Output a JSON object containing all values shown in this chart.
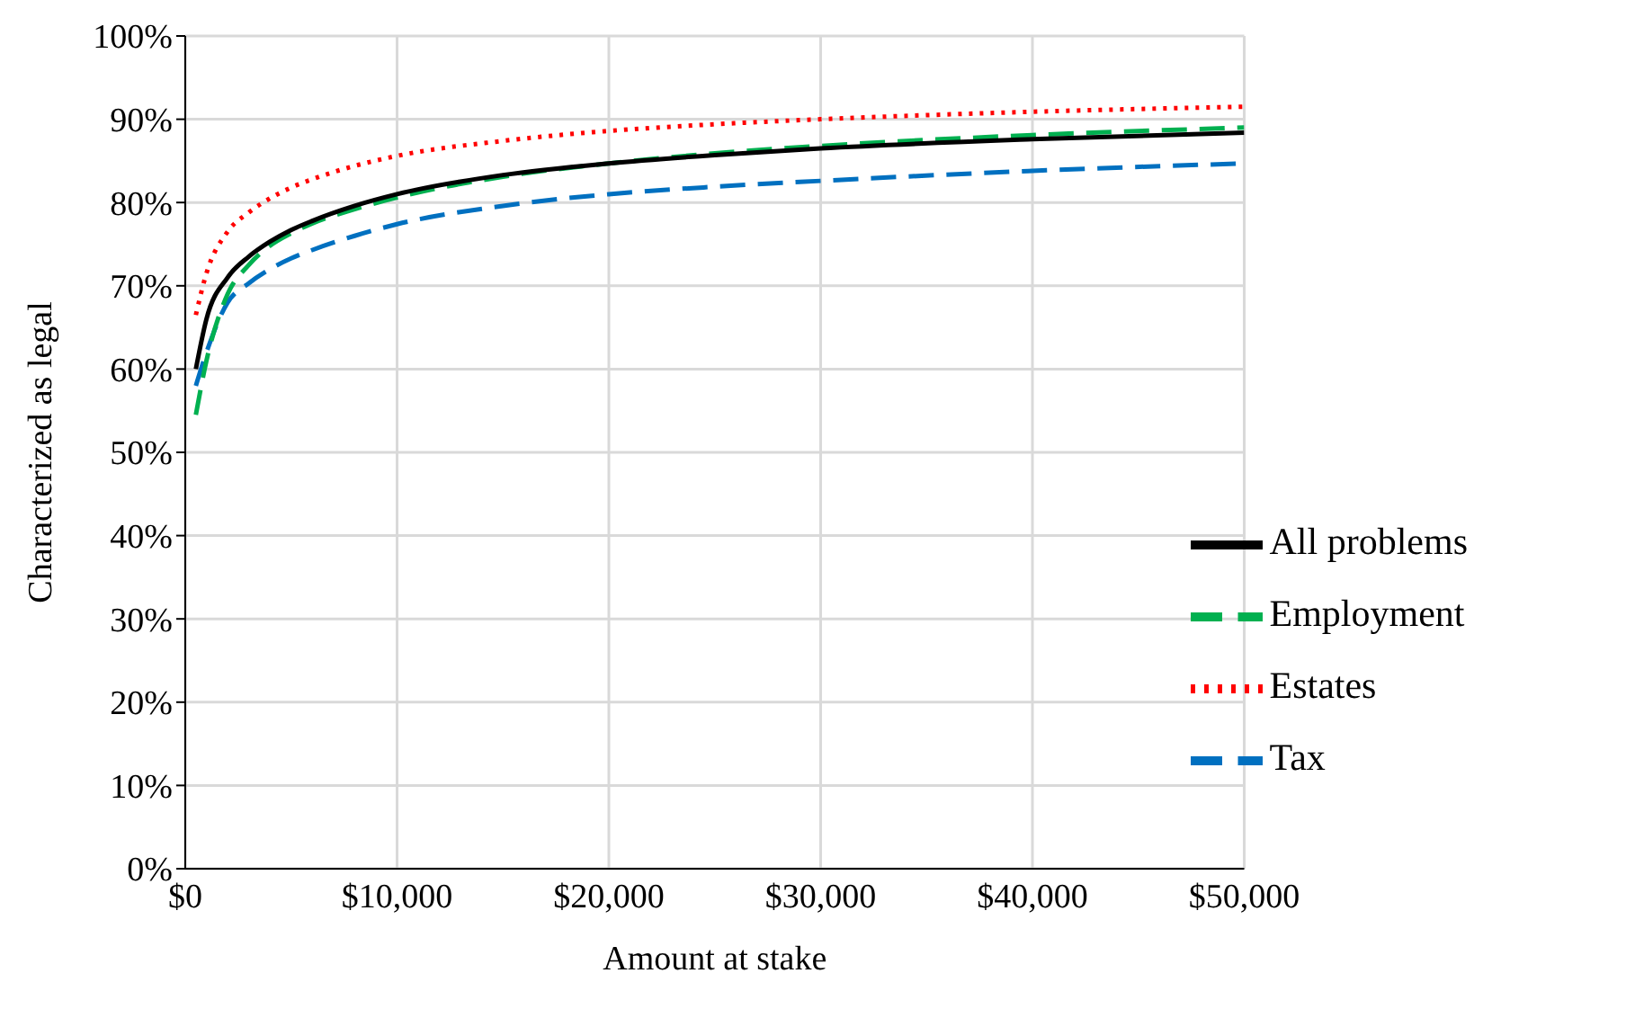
{
  "chart_data": {
    "type": "line",
    "xlabel": "Amount at stake",
    "ylabel": "Characterized as legal",
    "x": [
      500,
      1000,
      2000,
      3000,
      4000,
      5000,
      6000,
      8000,
      10000,
      15000,
      20000,
      25000,
      30000,
      40000,
      50000
    ],
    "series": [
      {
        "name": "Tax",
        "color": "#0070c0",
        "line_style": "dashed",
        "values": [
          58,
          62,
          68,
          70.3,
          72,
          73.3,
          74.3,
          76,
          77.4,
          79.6,
          81,
          81.9,
          82.6,
          83.8,
          84.7
        ]
      },
      {
        "name": "Employment",
        "color": "#00b050",
        "line_style": "dashed",
        "values": [
          54.5,
          61,
          69,
          72.5,
          74.8,
          76.3,
          77.5,
          79.2,
          80.6,
          83.1,
          84.7,
          85.9,
          86.8,
          88.1,
          89
        ]
      },
      {
        "name": "Estates",
        "color": "#ff0000",
        "line_style": "dotted",
        "values": [
          66.5,
          71.5,
          76.5,
          78.8,
          80.5,
          81.8,
          82.8,
          84.4,
          85.6,
          87.4,
          88.6,
          89.4,
          90,
          90.9,
          91.5
        ]
      },
      {
        "name": "All problems",
        "color": "#000000",
        "line_style": "solid",
        "values": [
          60,
          66,
          71,
          73.5,
          75.3,
          76.7,
          77.8,
          79.6,
          81,
          83.3,
          84.7,
          85.7,
          86.5,
          87.6,
          88.4
        ]
      }
    ],
    "xlim": [
      0,
      50000
    ],
    "xticks": [
      {
        "value": 0,
        "label": "$0"
      },
      {
        "value": 10000,
        "label": "$10,000"
      },
      {
        "value": 20000,
        "label": "$20,000"
      },
      {
        "value": 30000,
        "label": "$30,000"
      },
      {
        "value": 40000,
        "label": "$40,000"
      },
      {
        "value": 50000,
        "label": "$50,000"
      }
    ],
    "ylim": [
      0,
      100
    ],
    "yticks": [
      {
        "value": 0,
        "label": "0%"
      },
      {
        "value": 10,
        "label": "10%"
      },
      {
        "value": 20,
        "label": "20%"
      },
      {
        "value": 30,
        "label": "30%"
      },
      {
        "value": 40,
        "label": "40%"
      },
      {
        "value": 50,
        "label": "50%"
      },
      {
        "value": 60,
        "label": "60%"
      },
      {
        "value": 70,
        "label": "70%"
      },
      {
        "value": 80,
        "label": "80%"
      },
      {
        "value": 90,
        "label": "90%"
      },
      {
        "value": 100,
        "label": "100%"
      }
    ],
    "grid": true,
    "legend": "bottom right",
    "marker": "none"
  }
}
